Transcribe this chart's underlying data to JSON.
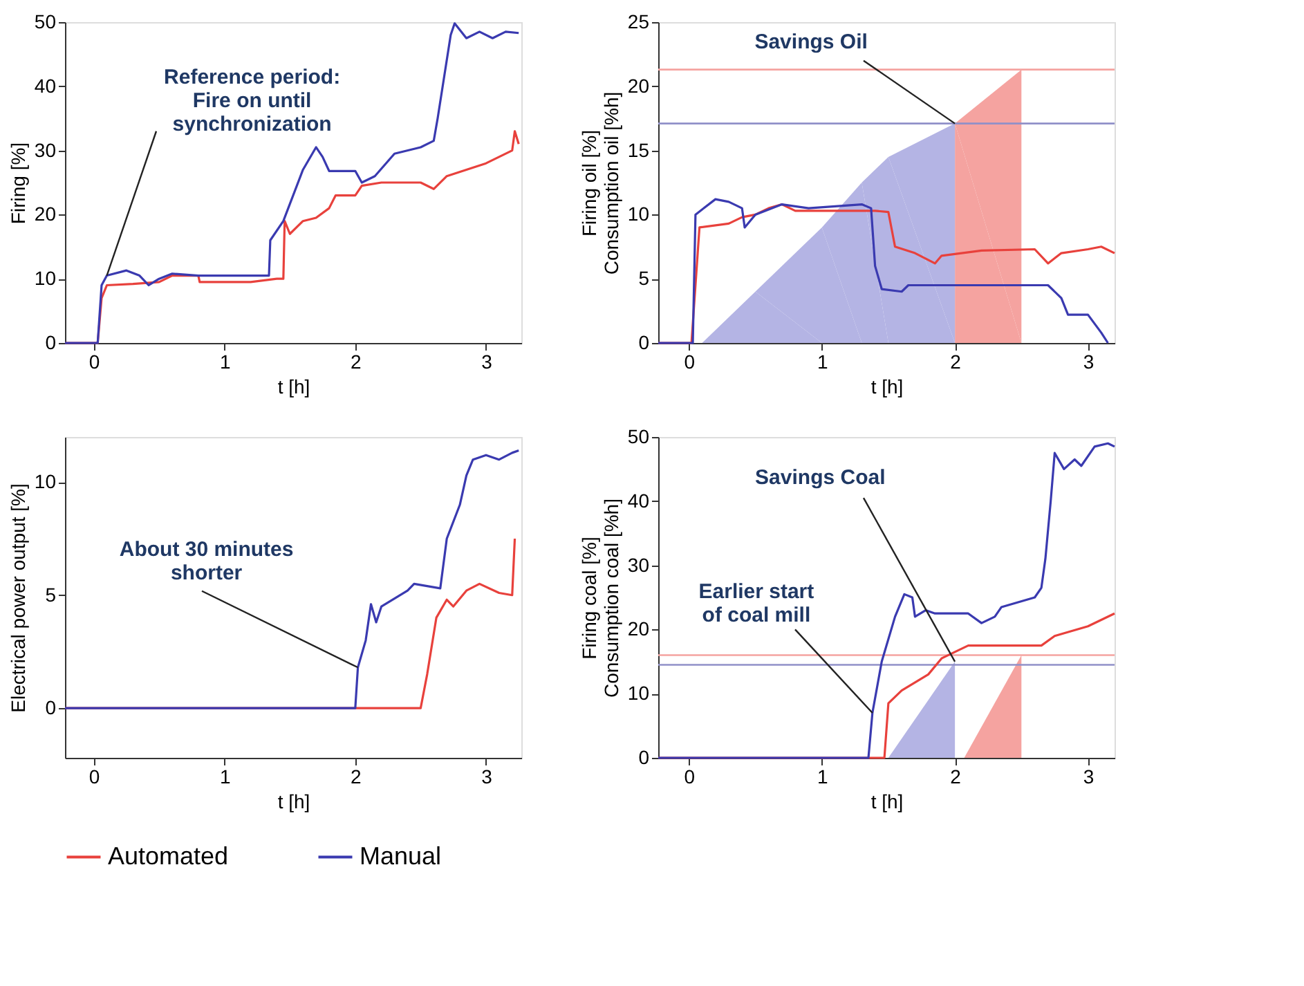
{
  "chart_data": [
    {
      "type": "line",
      "xlabel": "t [h]",
      "ylabel": "Firing [%]",
      "xlim": [
        -0.22,
        3.27
      ],
      "xticks": [
        0,
        1,
        2,
        3
      ],
      "ylim": [
        0,
        50
      ],
      "yticks": [
        0,
        10,
        20,
        30,
        40,
        50
      ],
      "grid": false,
      "legend": "bottom",
      "line_style": "solid",
      "marker": "none",
      "series": [
        {
          "name": "Automated",
          "color": "#e8413c",
          "x": [
            -0.22,
            0.03,
            0.06,
            0.1,
            0.3,
            0.5,
            0.6,
            0.8,
            0.81,
            1.2,
            1.4,
            1.45,
            1.46,
            1.5,
            1.6,
            1.7,
            1.8,
            1.85,
            2.0,
            2.05,
            2.2,
            2.5,
            2.6,
            2.7,
            3.0,
            3.2,
            3.22,
            3.25
          ],
          "values": [
            0,
            0,
            7,
            9,
            9.2,
            9.5,
            10.5,
            10.5,
            9.5,
            9.5,
            10,
            10,
            19,
            17,
            19,
            19.5,
            21,
            23,
            23,
            24.5,
            25,
            25,
            24,
            26,
            28,
            30,
            33,
            31
          ]
        },
        {
          "name": "Manual",
          "color": "#3a3ab0",
          "x": [
            -0.22,
            0.03,
            0.06,
            0.1,
            0.25,
            0.35,
            0.42,
            0.5,
            0.6,
            0.8,
            1.0,
            1.34,
            1.35,
            1.45,
            1.6,
            1.7,
            1.75,
            1.8,
            2.0,
            2.05,
            2.15,
            2.3,
            2.5,
            2.6,
            2.63,
            2.73,
            2.76,
            2.85,
            2.95,
            3.05,
            3.15,
            3.25
          ],
          "values": [
            0,
            0,
            9,
            10.5,
            11.3,
            10.5,
            9,
            10,
            10.8,
            10.5,
            10.5,
            10.5,
            16,
            19,
            27,
            30.5,
            29,
            26.8,
            26.8,
            25,
            26,
            29.5,
            30.5,
            31.5,
            35,
            48,
            49.8,
            47.5,
            48.5,
            47.5,
            48.5,
            48.3
          ]
        }
      ],
      "annotations": [
        {
          "text": "Reference period:\nFire on until\nsynchronization",
          "x": 0.1,
          "y": 10.5
        }
      ]
    },
    {
      "type": "line",
      "xlabel": "t [h]",
      "ylabel": "Firing oil [%]\nConsumption oil [%h]",
      "xlim": [
        -0.23,
        3.2
      ],
      "xticks": [
        0,
        1,
        2,
        3
      ],
      "ylim": [
        0,
        25
      ],
      "yticks": [
        0,
        5,
        10,
        15,
        20,
        25
      ],
      "grid": false,
      "legend": "bottom",
      "line_style": "solid",
      "marker": "none",
      "series": [
        {
          "type": "area",
          "color": "#f5a3a0",
          "x": [
            2.0,
            2.5
          ],
          "values": [
            17.1,
            21.3
          ]
        },
        {
          "type": "area",
          "color": "#b4b4e4",
          "x": [
            0.1,
            0.5,
            1.0,
            1.3,
            1.5,
            2.0
          ],
          "values": [
            0,
            4,
            9,
            12.5,
            14.5,
            17.1
          ]
        },
        {
          "name": "Automated",
          "color": "#e8413c",
          "x": [
            -0.23,
            0.02,
            0.06,
            0.08,
            0.3,
            0.4,
            0.5,
            0.6,
            0.7,
            0.8,
            1.4,
            1.5,
            1.55,
            1.7,
            1.85,
            1.9,
            2.2,
            2.6,
            2.7,
            2.8,
            3.0,
            3.1,
            3.2
          ],
          "values": [
            0,
            0,
            6,
            9,
            9.3,
            9.8,
            10,
            10.5,
            10.8,
            10.3,
            10.3,
            10.2,
            7.5,
            7,
            6.2,
            6.8,
            7.2,
            7.3,
            6.2,
            7,
            7.3,
            7.5,
            7
          ]
        },
        {
          "name": "Manual",
          "color": "#3a3ab0",
          "x": [
            -0.23,
            0.03,
            0.05,
            0.2,
            0.3,
            0.4,
            0.42,
            0.5,
            0.7,
            0.9,
            1.3,
            1.37,
            1.4,
            1.45,
            1.6,
            1.65,
            2.7,
            2.8,
            2.85,
            3.0,
            3.1,
            3.15
          ],
          "values": [
            0,
            0,
            10,
            11.2,
            11,
            10.5,
            9,
            10,
            10.8,
            10.5,
            10.8,
            10.5,
            6,
            4.2,
            4,
            4.5,
            4.5,
            3.5,
            2.2,
            2.2,
            0.8,
            0
          ]
        }
      ],
      "ref_lines": [
        {
          "axis": "y",
          "value": 21.3,
          "color": "#f5a3a0"
        },
        {
          "axis": "y",
          "value": 17.1,
          "color": "#9090c8"
        }
      ],
      "annotations": [
        {
          "text": "Savings Oil",
          "x": 2.0,
          "y": 17.1
        }
      ]
    },
    {
      "type": "line",
      "xlabel": "t [h]",
      "ylabel": "Electrical power output [%]",
      "xlim": [
        -0.22,
        3.27
      ],
      "xticks": [
        0,
        1,
        2,
        3
      ],
      "ylim": [
        -2.2,
        12
      ],
      "yticks": [
        0,
        5,
        10
      ],
      "grid": false,
      "legend": "bottom",
      "line_style": "solid",
      "marker": "none",
      "series": [
        {
          "name": "Automated",
          "color": "#e8413c",
          "x": [
            -0.22,
            2.5,
            2.55,
            2.62,
            2.7,
            2.75,
            2.85,
            2.95,
            3.1,
            3.2,
            3.22
          ],
          "values": [
            0,
            0,
            1.5,
            4,
            4.8,
            4.5,
            5.2,
            5.5,
            5.1,
            5.0,
            7.5
          ]
        },
        {
          "name": "Manual",
          "color": "#3a3ab0",
          "x": [
            -0.22,
            2.0,
            2.02,
            2.08,
            2.12,
            2.16,
            2.2,
            2.4,
            2.45,
            2.65,
            2.7,
            2.8,
            2.85,
            2.9,
            3.0,
            3.1,
            3.2,
            3.25
          ],
          "values": [
            0,
            0,
            1.8,
            3,
            4.6,
            3.8,
            4.5,
            5.2,
            5.5,
            5.3,
            7.5,
            9,
            10.3,
            11,
            11.2,
            11,
            11.3,
            11.4
          ]
        }
      ],
      "annotations": [
        {
          "text": "About 30 minutes\nshorter",
          "x": 2.02,
          "y": 1.8
        }
      ]
    },
    {
      "type": "line",
      "xlabel": "t [h]",
      "ylabel": "Firing coal [%]\nConsumption coal [%h]",
      "xlim": [
        -0.23,
        3.2
      ],
      "xticks": [
        0,
        1,
        2,
        3
      ],
      "ylim": [
        0,
        50
      ],
      "yticks": [
        0,
        10,
        20,
        30,
        40,
        50
      ],
      "grid": false,
      "legend": "bottom",
      "line_style": "solid",
      "marker": "none",
      "series": [
        {
          "type": "area",
          "color": "#f5a3a0",
          "x": [
            2.07,
            2.5
          ],
          "values": [
            0,
            16
          ]
        },
        {
          "type": "area",
          "color": "#b4b4e4",
          "x": [
            1.5,
            2.0
          ],
          "values": [
            0,
            15
          ]
        },
        {
          "name": "Automated",
          "color": "#e8413c",
          "x": [
            -0.23,
            1.47,
            1.5,
            1.6,
            1.8,
            1.9,
            2.0,
            2.1,
            2.65,
            2.75,
            3.0,
            3.1,
            3.2
          ],
          "values": [
            0,
            0,
            8.5,
            10.5,
            13,
            15.5,
            16.5,
            17.5,
            17.5,
            19,
            20.5,
            21.5,
            22.5
          ]
        },
        {
          "name": "Manual",
          "color": "#3a3ab0",
          "x": [
            -0.23,
            1.35,
            1.38,
            1.45,
            1.55,
            1.62,
            1.68,
            1.7,
            1.78,
            1.85,
            2.1,
            2.2,
            2.3,
            2.35,
            2.6,
            2.65,
            2.68,
            2.72,
            2.75,
            2.82,
            2.9,
            2.95,
            3.05,
            3.15,
            3.2
          ],
          "values": [
            0,
            0,
            7,
            15,
            22,
            25.5,
            25,
            22,
            23,
            22.5,
            22.5,
            21,
            22,
            23.5,
            25,
            26.5,
            31,
            40,
            47.5,
            45,
            46.5,
            45.5,
            48.5,
            49,
            48.5
          ]
        }
      ],
      "ref_lines": [
        {
          "axis": "y",
          "value": 16,
          "color": "#f5a3a0"
        },
        {
          "axis": "y",
          "value": 14.5,
          "color": "#9090c8"
        }
      ],
      "annotations": [
        {
          "text": "Savings Coal",
          "x": 2.0,
          "y": 15
        },
        {
          "text": "Earlier start\nof coal mill",
          "x": 1.38,
          "y": 7
        }
      ]
    }
  ]
}
